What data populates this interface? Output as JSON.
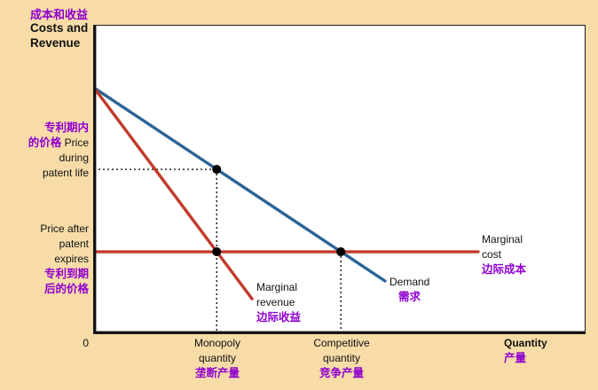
{
  "palette": {
    "background": "#f7dca8",
    "plot_background": "#ffffff",
    "demand_blue": "#2a6496",
    "marginal_red": "#c03a2b",
    "accent_purple": "#8f00d0",
    "axis_black": "#1a1a1a"
  },
  "header": {
    "title_zh": "成本和收益",
    "title_en_line1": "Costs and",
    "title_en_line2": "Revenue"
  },
  "left_labels": {
    "patent_zh_line1": "专利期内",
    "patent_zh_line2": "的价格",
    "price_during_line1": "Price",
    "price_during_line2": "during",
    "price_during_line3": "patent life",
    "price_after_line1": "Price after",
    "price_after_line2": "patent",
    "price_after_line3": "expires",
    "after_zh_line1": "专利到期",
    "after_zh_line2": "后的价格"
  },
  "curve_labels": {
    "marginal_revenue_line1": "Marginal",
    "marginal_revenue_line2": "revenue",
    "marginal_revenue_zh": "边际收益",
    "demand_en": "Demand",
    "demand_zh": "需求",
    "marginal_cost_line1": "Marginal",
    "marginal_cost_line2": "cost",
    "marginal_cost_zh": "边际成本"
  },
  "x_axis": {
    "origin": "0",
    "monopoly_line1": "Monopoly",
    "monopoly_line2": "quantity",
    "monopoly_zh": "垄断产量",
    "competitive_line1": "Competitive",
    "competitive_line2": "quantity",
    "competitive_zh": "竞争产量",
    "quantity_en": "Quantity",
    "quantity_zh": "产量"
  },
  "chart_data": {
    "type": "line",
    "title": "",
    "xlabel": "Quantity",
    "ylabel": "Costs and Revenue",
    "grid": false,
    "legend_position": "inline-annotations",
    "axis_ranges": {
      "x": [
        0,
        100
      ],
      "y": [
        0,
        100
      ]
    },
    "series": [
      {
        "name": "Demand",
        "color": "#2a6496",
        "points": [
          [
            0,
            79.8
          ],
          [
            59.3,
            17.0
          ]
        ]
      },
      {
        "name": "Marginal revenue",
        "color": "#c03a2b",
        "points": [
          [
            0,
            79.8
          ],
          [
            32.2,
            11.2
          ]
        ]
      },
      {
        "name": "Marginal cost",
        "color": "#c03a2b",
        "points": [
          [
            0,
            26.5
          ],
          [
            78.3,
            26.5
          ]
        ]
      }
    ],
    "key_values": {
      "monopoly_quantity_x": 25,
      "competitive_quantity_x": 50.3,
      "price_during_patent_y": 53.3,
      "price_after_patent_y": 26.5
    },
    "markers": [
      {
        "x": 25,
        "y": 53.3,
        "label": "price during patent life on demand curve"
      },
      {
        "x": 25,
        "y": 26.5,
        "label": "MR = MC monopoly output point"
      },
      {
        "x": 50.3,
        "y": 26.5,
        "label": "demand = MC competitive output point"
      }
    ],
    "dotted_guides": [
      {
        "from": [
          0,
          53.3
        ],
        "to": [
          25,
          53.3
        ]
      },
      {
        "from": [
          25,
          53.3
        ],
        "to": [
          25,
          0
        ]
      },
      {
        "from": [
          50.3,
          26.5
        ],
        "to": [
          50.3,
          0
        ]
      }
    ]
  }
}
